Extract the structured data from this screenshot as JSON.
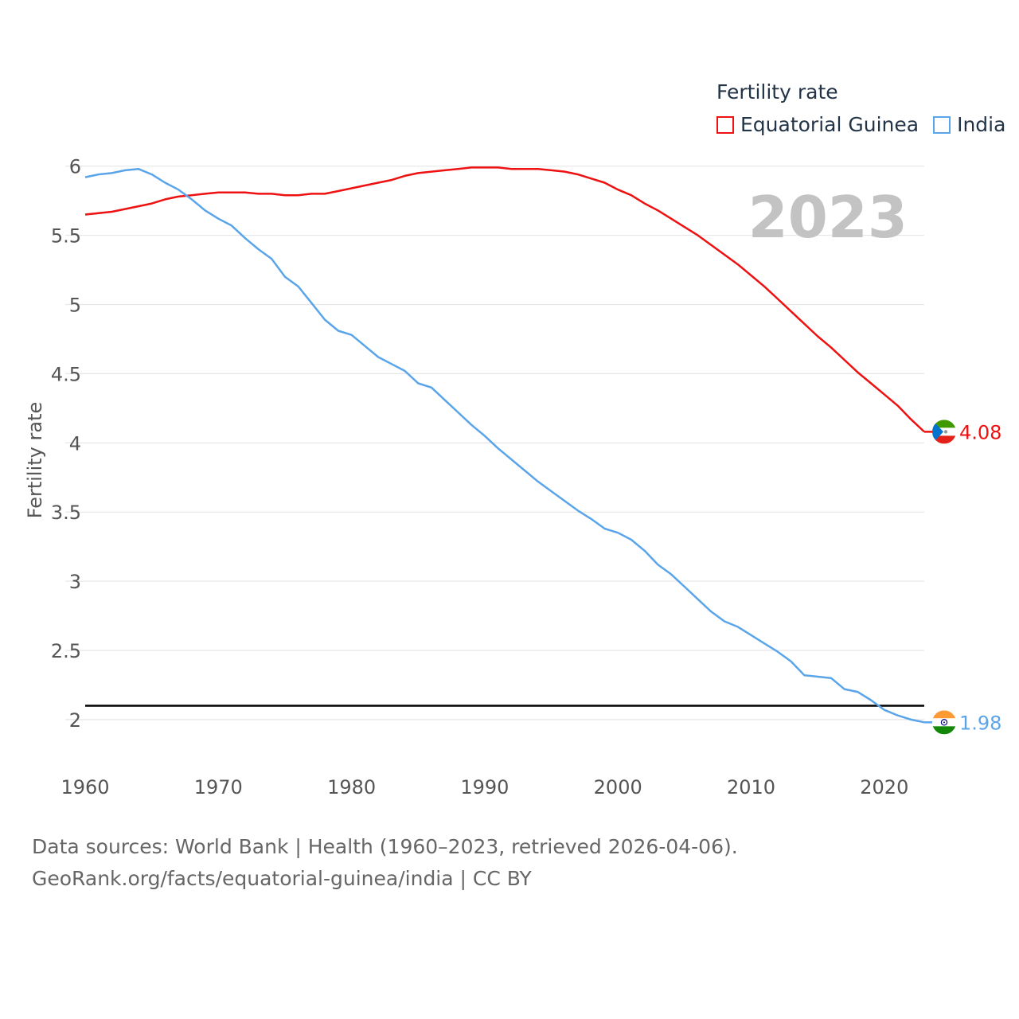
{
  "legend": {
    "title": "Fertility rate",
    "items": [
      {
        "name": "Equatorial Guinea",
        "color": "#ee1111"
      },
      {
        "name": "India",
        "color": "#5aa5ea"
      }
    ]
  },
  "source": {
    "line1": "Data sources: World Bank | Health (1960–2023, retrieved 2026-04-06).",
    "line2": "GeoRank.org/facts/equatorial-guinea/india | CC BY"
  },
  "chart_data": {
    "type": "line",
    "year_label": "2023",
    "ylabel": "Fertility rate",
    "xlabel": "",
    "xlim": [
      1960,
      2023
    ],
    "ylim": [
      1.7,
      6.05
    ],
    "x_ticks": [
      1960,
      1970,
      1980,
      1990,
      2000,
      2010,
      2020
    ],
    "y_ticks": [
      2,
      2.5,
      3,
      3.5,
      4,
      4.5,
      5,
      5.5,
      6
    ],
    "y_tick_labels": [
      "2",
      "2.5",
      "3",
      "3.5",
      "4",
      "4.5",
      "5",
      "5.5",
      "6"
    ],
    "reference_line": 2.1,
    "series": [
      {
        "name": "Equatorial Guinea",
        "color": "#ee1111",
        "end_label": "4.08",
        "flag": "equatorial-guinea-flag",
        "x": [
          1960,
          1962,
          1964,
          1965,
          1966,
          1967,
          1968,
          1969,
          1970,
          1971,
          1972,
          1973,
          1974,
          1975,
          1976,
          1977,
          1978,
          1979,
          1980,
          1981,
          1982,
          1983,
          1984,
          1985,
          1986,
          1987,
          1988,
          1989,
          1990,
          1991,
          1992,
          1993,
          1994,
          1995,
          1996,
          1997,
          1998,
          1999,
          2000,
          2001,
          2002,
          2003,
          2004,
          2005,
          2006,
          2007,
          2008,
          2009,
          2010,
          2011,
          2012,
          2013,
          2014,
          2015,
          2016,
          2017,
          2018,
          2019,
          2020,
          2021,
          2022,
          2023
        ],
        "values": [
          5.65,
          5.67,
          5.71,
          5.73,
          5.76,
          5.78,
          5.79,
          5.8,
          5.81,
          5.81,
          5.81,
          5.8,
          5.8,
          5.79,
          5.79,
          5.8,
          5.8,
          5.82,
          5.84,
          5.86,
          5.88,
          5.9,
          5.93,
          5.95,
          5.96,
          5.97,
          5.98,
          5.99,
          5.99,
          5.99,
          5.98,
          5.98,
          5.98,
          5.97,
          5.96,
          5.94,
          5.91,
          5.88,
          5.83,
          5.79,
          5.73,
          5.68,
          5.62,
          5.56,
          5.5,
          5.43,
          5.36,
          5.29,
          5.21,
          5.13,
          5.04,
          4.95,
          4.86,
          4.77,
          4.69,
          4.6,
          4.51,
          4.43,
          4.35,
          4.27,
          4.17,
          4.08
        ]
      },
      {
        "name": "India",
        "color": "#5aa5ea",
        "end_label": "1.98",
        "flag": "india-flag",
        "x": [
          1960,
          1961,
          1962,
          1963,
          1964,
          1965,
          1966,
          1967,
          1968,
          1969,
          1970,
          1971,
          1972,
          1973,
          1974,
          1975,
          1976,
          1977,
          1978,
          1979,
          1980,
          1981,
          1982,
          1983,
          1984,
          1985,
          1986,
          1987,
          1988,
          1989,
          1990,
          1991,
          1992,
          1993,
          1994,
          1995,
          1996,
          1997,
          1998,
          1999,
          2000,
          2001,
          2002,
          2003,
          2004,
          2005,
          2006,
          2007,
          2008,
          2009,
          2010,
          2011,
          2012,
          2013,
          2014,
          2015,
          2016,
          2017,
          2018,
          2019,
          2020,
          2021,
          2022,
          2023
        ],
        "values": [
          5.92,
          5.94,
          5.95,
          5.97,
          5.98,
          5.94,
          5.88,
          5.83,
          5.76,
          5.68,
          5.62,
          5.57,
          5.48,
          5.4,
          5.33,
          5.2,
          5.13,
          5.01,
          4.89,
          4.81,
          4.78,
          4.7,
          4.62,
          4.57,
          4.52,
          4.43,
          4.4,
          4.31,
          4.22,
          4.13,
          4.05,
          3.96,
          3.88,
          3.8,
          3.72,
          3.65,
          3.58,
          3.51,
          3.45,
          3.38,
          3.35,
          3.3,
          3.22,
          3.12,
          3.05,
          2.96,
          2.87,
          2.78,
          2.71,
          2.67,
          2.61,
          2.55,
          2.49,
          2.42,
          2.32,
          2.31,
          2.3,
          2.22,
          2.2,
          2.14,
          2.07,
          2.03,
          2.0,
          1.98
        ]
      }
    ]
  }
}
